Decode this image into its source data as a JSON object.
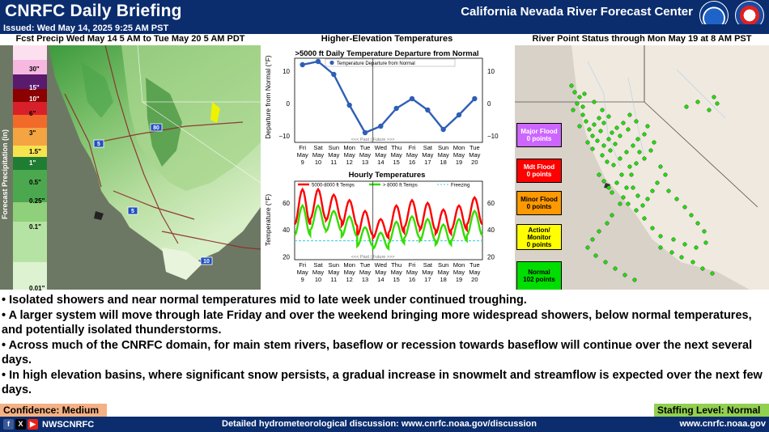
{
  "header": {
    "title": "CNRFC Daily Briefing",
    "center_name": "California Nevada River Forecast Center",
    "issued": "Issued: Wed May 14, 2025 9:25 AM PST"
  },
  "precip_panel": {
    "title": "Fcst Precip Wed May 14 5 AM to Tue May 20 5 AM PDT",
    "legend_axis": "Forecast Precipitation (in)",
    "legend_levels": [
      "30\"",
      "15\"",
      "10\"",
      "6\"",
      "3\"",
      "1.5\"",
      "1\"",
      "0.5\"",
      "0.25\"",
      "0.1\"",
      "0.01\""
    ],
    "highway_labels": [
      "80",
      "5",
      "5",
      "10"
    ]
  },
  "temps_panel": {
    "title": "Higher-Elevation Temperatures"
  },
  "chart_data": [
    {
      "type": "line",
      "title": ">5000 ft Daily Temperature Departure from Normal",
      "ylabel": "Departure from Normal (°F)",
      "legend": [
        "Temperature Departure from Normal"
      ],
      "past_future_label": "<<< Past | Future >>>",
      "categories": [
        "Fri May 9",
        "Sat May 10",
        "Sun May 11",
        "Mon May 12",
        "Tue May 13",
        "Wed May 14",
        "Thu May 15",
        "Fri May 16",
        "Sat May 17",
        "Sun May 18",
        "Mon May 19",
        "Tue May 20"
      ],
      "category_top": [
        "Fri",
        "Sat",
        "Sun",
        "Mon",
        "Tue",
        "Wed",
        "Thu",
        "Fri",
        "Sat",
        "Sun",
        "Mon",
        "Tue"
      ],
      "category_mid": [
        "May",
        "May",
        "May",
        "May",
        "May",
        "May",
        "May",
        "May",
        "May",
        "May",
        "May",
        "May"
      ],
      "category_bottom": [
        "9",
        "10",
        "11",
        "12",
        "13",
        "14",
        "15",
        "16",
        "17",
        "18",
        "19",
        "20"
      ],
      "series": [
        {
          "name": "Temperature Departure from Normal",
          "values": [
            12,
            13,
            9,
            -0.5,
            -9,
            -7,
            -1.5,
            1.5,
            -2,
            -8,
            -3.5,
            1.5
          ]
        }
      ],
      "ylim": [
        -12,
        16
      ],
      "yticks": [
        "10",
        "0",
        "−10"
      ],
      "colors": {
        "line": "#2f5fb5"
      }
    },
    {
      "type": "line",
      "title": "Hourly Temperatures",
      "ylabel": "Temperature (°F)",
      "legend": [
        "5000-8000 ft Temps",
        "> 8000 ft Temps",
        "Freezing"
      ],
      "past_future_label": "<<< Past | Future >>>",
      "categories": [
        "Fri May 9",
        "Sat May 10",
        "Sun May 11",
        "Mon May 12",
        "Tue May 13",
        "Wed May 14",
        "Thu May 15",
        "Fri May 16",
        "Sat May 17",
        "Sun May 18",
        "Mon May 19",
        "Tue May 20"
      ],
      "category_top": [
        "Fri",
        "Sat",
        "Sun",
        "Mon",
        "Tue",
        "Wed",
        "Thu",
        "Fri",
        "Sat",
        "Sun",
        "Mon",
        "Tue"
      ],
      "category_mid": [
        "May",
        "May",
        "May",
        "May",
        "May",
        "May",
        "May",
        "May",
        "May",
        "May",
        "May",
        "May"
      ],
      "category_bottom": [
        "9",
        "10",
        "11",
        "12",
        "13",
        "14",
        "15",
        "16",
        "17",
        "18",
        "19",
        "20"
      ],
      "series": [
        {
          "name": "5000-8000 ft Temps",
          "lows": [
            44,
            48,
            47,
            43,
            36,
            34,
            38,
            42,
            40,
            37,
            40,
            44
          ],
          "highs": [
            70,
            70,
            66,
            62,
            54,
            48,
            58,
            62,
            60,
            55,
            58,
            64
          ]
        },
        {
          "name": "> 8000 ft Temps",
          "lows": [
            36,
            40,
            39,
            35,
            28,
            26,
            30,
            34,
            32,
            29,
            32,
            36
          ],
          "highs": [
            58,
            58,
            54,
            50,
            42,
            38,
            46,
            50,
            48,
            44,
            48,
            54
          ]
        }
      ],
      "freezing": 32,
      "ylim": [
        18,
        76
      ],
      "yticks": [
        "60",
        "40",
        "20"
      ],
      "colors": {
        "low_band": "#ff0000",
        "high_band": "#33dd00",
        "freezing": "#33ccdd"
      }
    }
  ],
  "river_panel": {
    "title": "River Point Status through Mon May 19 at 8 AM PST",
    "status": [
      {
        "label": "Major Flood",
        "count": "0 points",
        "color": "#cc66ff",
        "text_color": "#ffffff"
      },
      {
        "label": "Mdt Flood",
        "count": "0 points",
        "color": "#ff0000",
        "text_color": "#ffffff"
      },
      {
        "label": "Minor Flood",
        "count": "0 points",
        "color": "#ff9900",
        "text_color": "#000000"
      },
      {
        "label": "Action/ Monitor",
        "count": "0 points",
        "color": "#ffff00",
        "text_color": "#000000"
      },
      {
        "label": "Normal",
        "count": "102 points",
        "color": "#00dd00",
        "text_color": "#000000"
      }
    ]
  },
  "bullets": [
    "• Isolated showers and near normal temperatures mid to late week under continued troughing.",
    "• A larger system will move through late Friday and over the weekend bringing more widespread showers, below normal temperatures, and potentially isolated thunderstorms.",
    "• Across much of the CNRFC domain, for main stem rivers, baseflow or recession towards baseflow will continue over the next several days.",
    "• In high elevation basins, where significant snow persists, a gradual increase in snowmelt and streamflow is expected over the next few days."
  ],
  "confidence": "Confidence: Medium",
  "staffing": "Staffing Level: Normal",
  "footer": {
    "handle": "NWSCNRFC",
    "discussion": "Detailed hydrometeorological discussion: www.cnrfc.noaa.gov/discussion",
    "site": "www.cnrfc.noaa.gov"
  }
}
